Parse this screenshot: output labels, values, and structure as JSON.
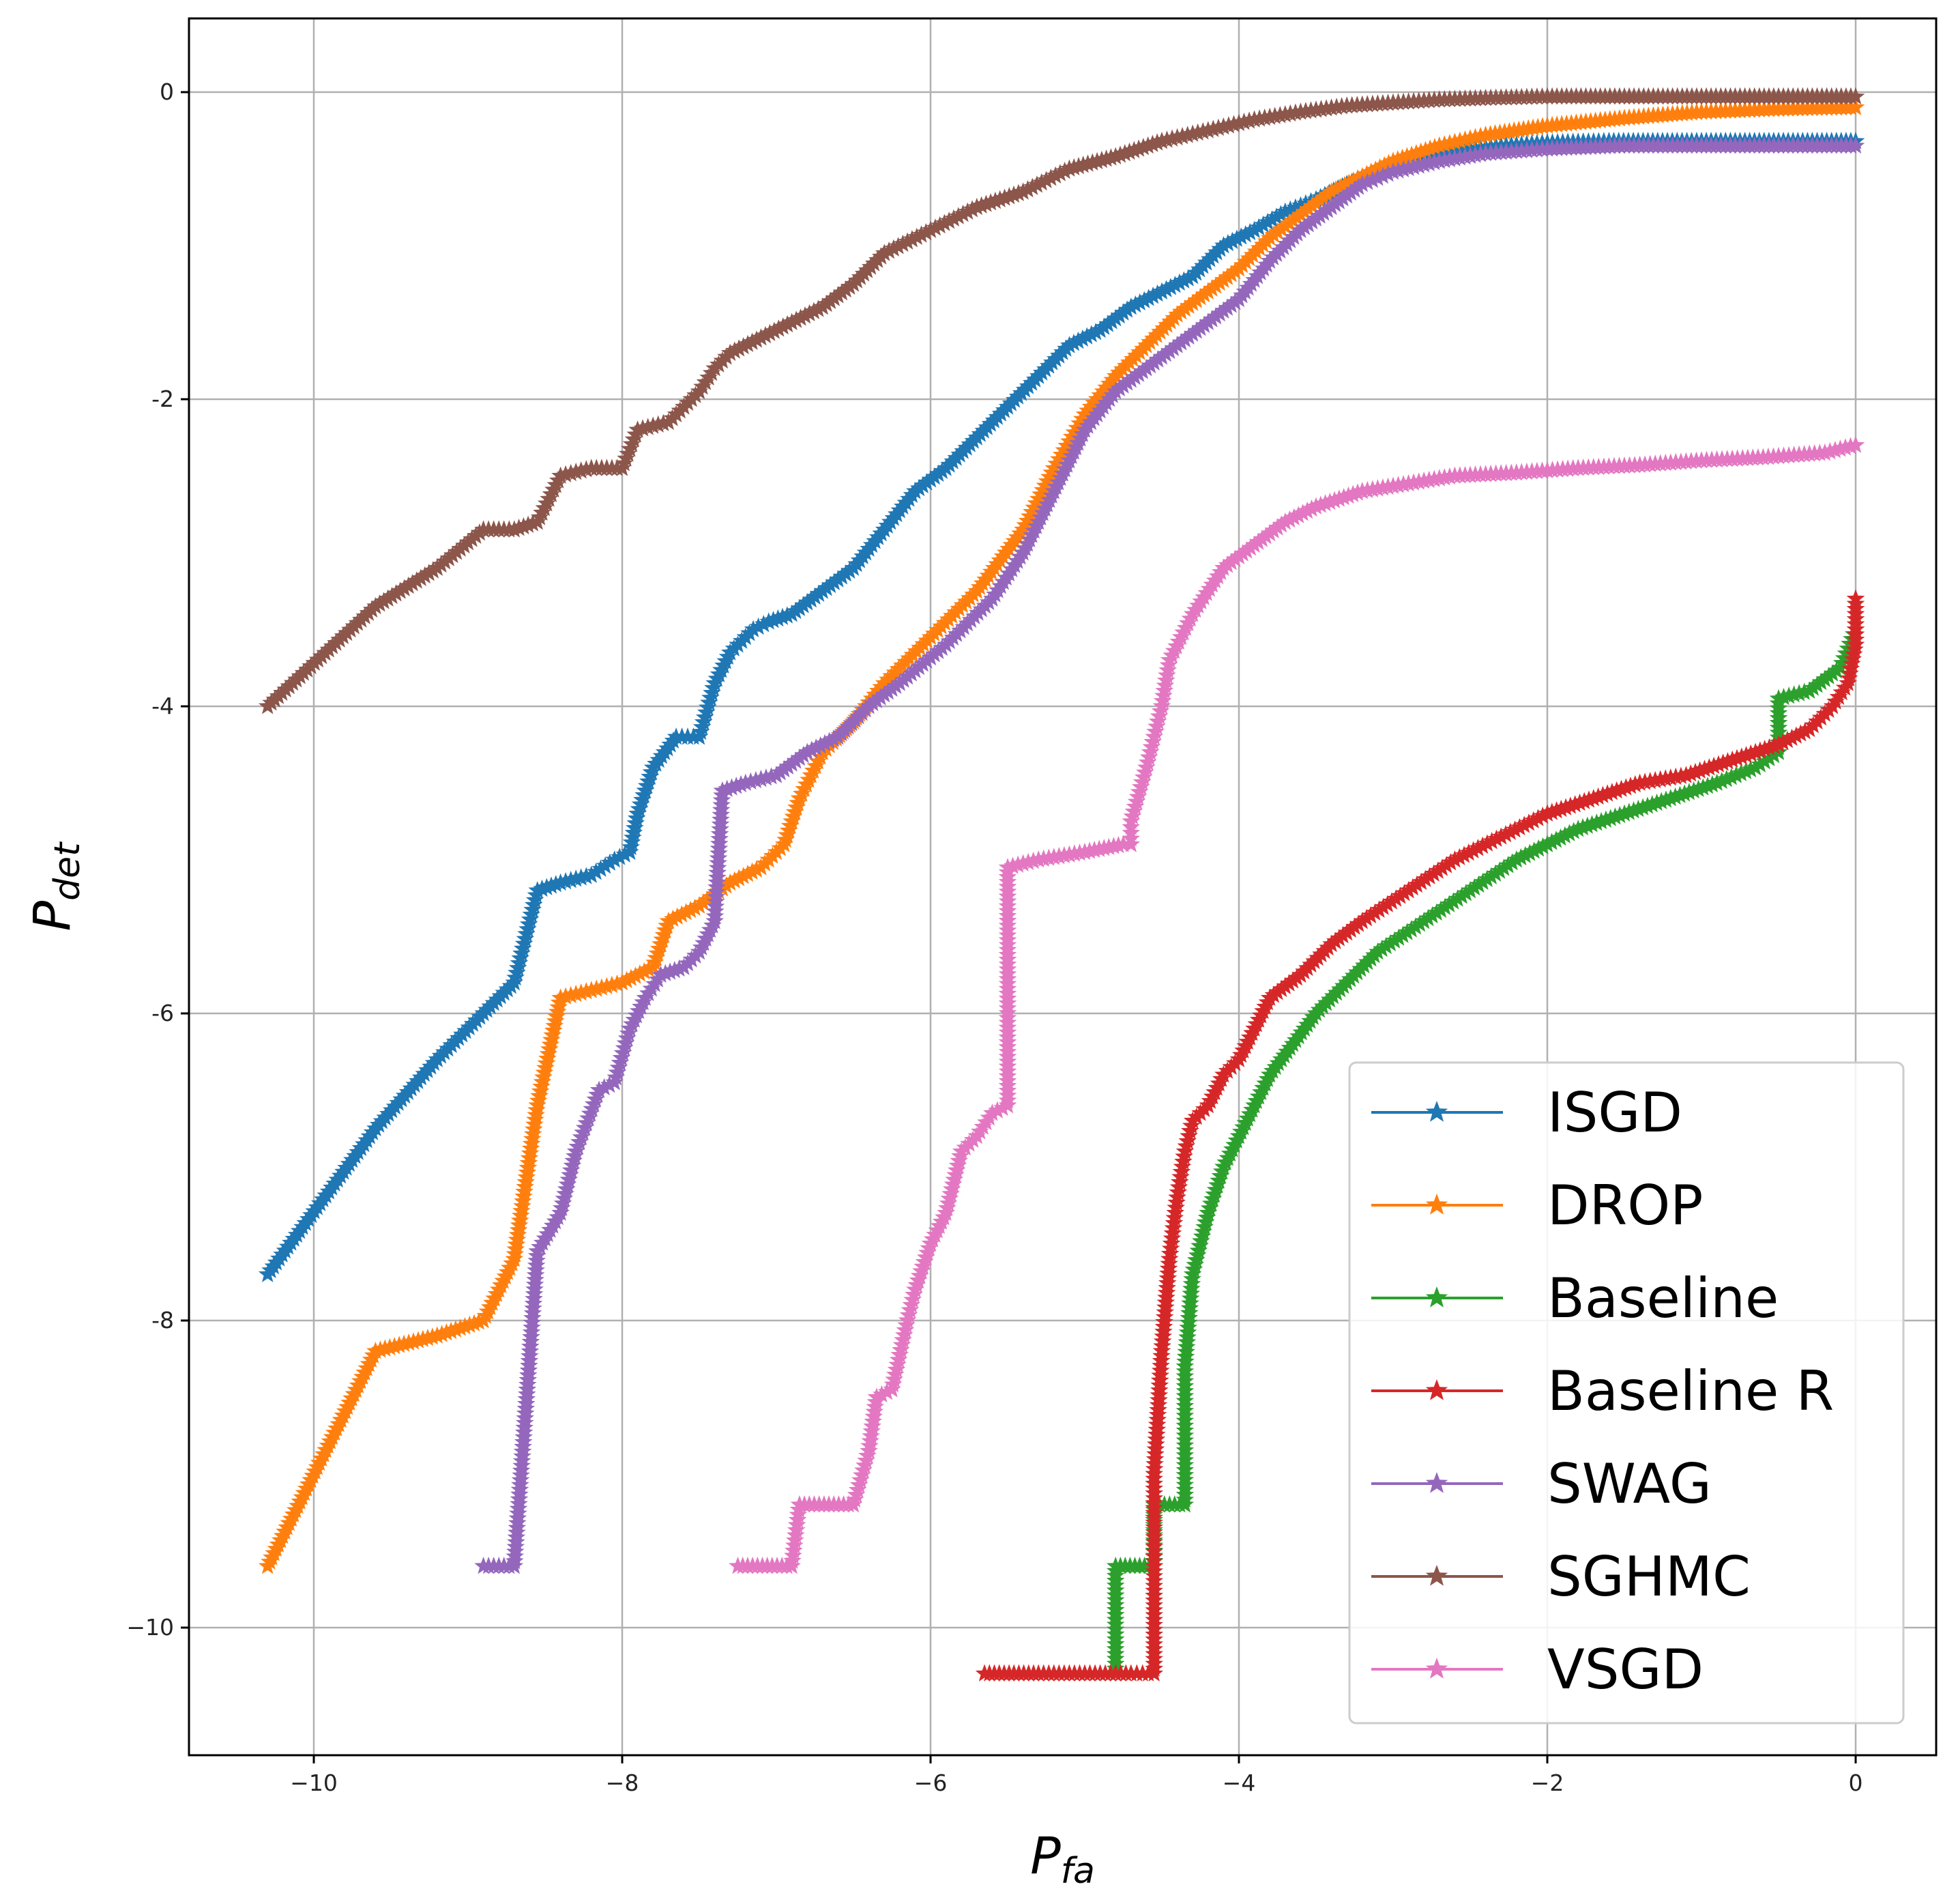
{
  "chart_data": {
    "type": "line",
    "xlabel": "P",
    "xlabel_sub": "fa",
    "ylabel": "P",
    "ylabel_sub": "det",
    "xlim": [
      -10.8,
      0.5
    ],
    "ylim": [
      -10.8,
      0.5
    ],
    "grid": true,
    "legend_position": "bottom-right",
    "x_ticks": [
      -10,
      -8,
      -6,
      -4,
      -2,
      0
    ],
    "x_tick_labels": [
      "−10",
      "−8",
      "−6",
      "−4",
      "−2",
      "0"
    ],
    "y_ticks": [
      0,
      -2,
      -4,
      -6,
      -8,
      -10
    ],
    "y_tick_labels": [
      "0",
      "-2",
      "-4",
      "-6",
      "-8",
      "−10"
    ],
    "series": [
      {
        "name": " ISGD",
        "color": "#1f77b4",
        "x": [
          -10.3,
          -9.6,
          -9.2,
          -8.9,
          -8.7,
          -8.55,
          -8.4,
          -8.2,
          -8.05,
          -7.95,
          -7.9,
          -7.8,
          -7.65,
          -7.5,
          -7.4,
          -7.3,
          -7.15,
          -7.05,
          -6.9,
          -6.7,
          -6.5,
          -6.3,
          -6.1,
          -5.9,
          -5.7,
          -5.5,
          -5.3,
          -5.1,
          -4.9,
          -4.7,
          -4.5,
          -4.3,
          -4.1,
          -3.9,
          -3.7,
          -3.5,
          -3.3,
          -3.1,
          -2.9,
          -2.7,
          -2.5,
          -2.3,
          -2.0,
          -1.6,
          -1.0,
          -0.5,
          0.0
        ],
        "y": [
          -7.7,
          -6.75,
          -6.3,
          -6.0,
          -5.8,
          -5.2,
          -5.15,
          -5.1,
          -5.0,
          -4.95,
          -4.7,
          -4.4,
          -4.2,
          -4.2,
          -3.85,
          -3.65,
          -3.5,
          -3.45,
          -3.4,
          -3.25,
          -3.1,
          -2.85,
          -2.6,
          -2.45,
          -2.25,
          -2.05,
          -1.85,
          -1.65,
          -1.55,
          -1.4,
          -1.3,
          -1.2,
          -1.0,
          -0.9,
          -0.78,
          -0.7,
          -0.6,
          -0.52,
          -0.45,
          -0.4,
          -0.37,
          -0.35,
          -0.33,
          -0.32,
          -0.32,
          -0.32,
          -0.32
        ]
      },
      {
        "name": "DROP",
        "color": "#ff7f0e",
        "x": [
          -10.3,
          -9.6,
          -9.2,
          -8.9,
          -8.7,
          -8.55,
          -8.4,
          -8.2,
          -8.0,
          -7.8,
          -7.7,
          -7.5,
          -7.3,
          -7.1,
          -6.95,
          -6.85,
          -6.7,
          -6.5,
          -6.3,
          -6.0,
          -5.7,
          -5.4,
          -5.2,
          -5.0,
          -4.8,
          -4.6,
          -4.4,
          -4.2,
          -4.0,
          -3.8,
          -3.6,
          -3.4,
          -3.2,
          -3.0,
          -2.7,
          -2.4,
          -2.0,
          -1.5,
          -1.0,
          -0.5,
          0.0
        ],
        "y": [
          -9.6,
          -8.2,
          -8.1,
          -8.0,
          -7.6,
          -6.6,
          -5.9,
          -5.85,
          -5.8,
          -5.7,
          -5.4,
          -5.3,
          -5.15,
          -5.05,
          -4.9,
          -4.6,
          -4.3,
          -4.1,
          -3.85,
          -3.55,
          -3.25,
          -2.85,
          -2.45,
          -2.1,
          -1.85,
          -1.65,
          -1.45,
          -1.3,
          -1.15,
          -0.95,
          -0.8,
          -0.65,
          -0.55,
          -0.45,
          -0.35,
          -0.28,
          -0.22,
          -0.17,
          -0.13,
          -0.11,
          -0.1
        ]
      },
      {
        "name": "Baseline",
        "color": "#2ca02c",
        "x": [
          -4.8,
          -4.8,
          -4.55,
          -4.55,
          -4.35,
          -4.35,
          -4.3,
          -4.2,
          -4.1,
          -4.0,
          -3.9,
          -3.8,
          -3.65,
          -3.5,
          -3.3,
          -3.1,
          -2.8,
          -2.5,
          -2.2,
          -2.0,
          -1.8,
          -1.5,
          -1.2,
          -0.9,
          -0.65,
          -0.5,
          -0.5,
          -0.3,
          -0.1,
          0.0
        ],
        "y": [
          -10.3,
          -9.6,
          -9.6,
          -9.2,
          -9.2,
          -8.3,
          -7.7,
          -7.3,
          -7.0,
          -6.8,
          -6.6,
          -6.4,
          -6.2,
          -6.0,
          -5.8,
          -5.6,
          -5.4,
          -5.2,
          -5.0,
          -4.9,
          -4.8,
          -4.7,
          -4.6,
          -4.5,
          -4.4,
          -4.3,
          -3.95,
          -3.9,
          -3.75,
          -3.5
        ]
      },
      {
        "name": "Baseline R",
        "color": "#d62728",
        "x": [
          -5.65,
          -5.3,
          -5.0,
          -4.7,
          -4.55,
          -4.55,
          -4.5,
          -4.45,
          -4.4,
          -4.35,
          -4.3,
          -4.2,
          -4.1,
          -4.0,
          -3.9,
          -3.8,
          -3.6,
          -3.4,
          -3.2,
          -2.9,
          -2.6,
          -2.3,
          -2.0,
          -1.7,
          -1.4,
          -1.1,
          -0.8,
          -0.5,
          -0.3,
          -0.15,
          -0.05,
          0.0,
          0.0
        ],
        "y": [
          -10.3,
          -10.3,
          -10.3,
          -10.3,
          -10.3,
          -9.0,
          -8.2,
          -7.6,
          -7.2,
          -6.9,
          -6.7,
          -6.6,
          -6.4,
          -6.3,
          -6.1,
          -5.9,
          -5.75,
          -5.55,
          -5.4,
          -5.2,
          -5.0,
          -4.85,
          -4.7,
          -4.6,
          -4.5,
          -4.45,
          -4.35,
          -4.25,
          -4.15,
          -4.0,
          -3.85,
          -3.6,
          -3.3
        ]
      },
      {
        "name": "SWAG",
        "color": "#9467bd",
        "x": [
          -8.9,
          -8.7,
          -8.55,
          -8.4,
          -8.3,
          -8.15,
          -8.05,
          -7.95,
          -7.85,
          -7.75,
          -7.6,
          -7.5,
          -7.4,
          -7.35,
          -7.2,
          -7.0,
          -6.8,
          -6.6,
          -6.4,
          -6.2,
          -5.9,
          -5.6,
          -5.4,
          -5.2,
          -5.0,
          -4.8,
          -4.6,
          -4.4,
          -4.2,
          -4.0,
          -3.8,
          -3.6,
          -3.4,
          -3.2,
          -3.0,
          -2.7,
          -2.4,
          -2.0,
          -1.5,
          -1.0,
          -0.5,
          0.0
        ],
        "y": [
          -9.6,
          -9.6,
          -7.55,
          -7.3,
          -6.9,
          -6.5,
          -6.45,
          -6.1,
          -5.9,
          -5.75,
          -5.7,
          -5.6,
          -5.4,
          -4.55,
          -4.5,
          -4.45,
          -4.3,
          -4.2,
          -4.0,
          -3.85,
          -3.6,
          -3.3,
          -3.0,
          -2.6,
          -2.2,
          -1.95,
          -1.8,
          -1.65,
          -1.5,
          -1.35,
          -1.1,
          -0.9,
          -0.75,
          -0.6,
          -0.52,
          -0.45,
          -0.4,
          -0.37,
          -0.35,
          -0.35,
          -0.35,
          -0.35
        ]
      },
      {
        "name": "SGHMC",
        "color": "#8c564b",
        "x": [
          -10.3,
          -9.6,
          -9.2,
          -8.9,
          -8.7,
          -8.55,
          -8.4,
          -8.2,
          -8.0,
          -7.9,
          -7.7,
          -7.6,
          -7.5,
          -7.4,
          -7.3,
          -7.1,
          -6.9,
          -6.7,
          -6.5,
          -6.3,
          -6.0,
          -5.7,
          -5.4,
          -5.1,
          -4.8,
          -4.5,
          -4.2,
          -3.9,
          -3.6,
          -3.3,
          -3.0,
          -2.7,
          -2.4,
          -2.0,
          -1.5,
          -1.0,
          -0.5,
          0.0
        ],
        "y": [
          -4.0,
          -3.35,
          -3.1,
          -2.85,
          -2.85,
          -2.8,
          -2.5,
          -2.45,
          -2.45,
          -2.2,
          -2.15,
          -2.05,
          -1.95,
          -1.8,
          -1.7,
          -1.6,
          -1.5,
          -1.4,
          -1.25,
          -1.05,
          -0.9,
          -0.75,
          -0.65,
          -0.5,
          -0.42,
          -0.32,
          -0.25,
          -0.18,
          -0.13,
          -0.09,
          -0.07,
          -0.05,
          -0.04,
          -0.03,
          -0.03,
          -0.03,
          -0.03,
          -0.03
        ]
      },
      {
        "name": "VSGD",
        "color": "#e377c2",
        "x": [
          -7.25,
          -6.9,
          -6.85,
          -6.5,
          -6.4,
          -6.35,
          -6.25,
          -6.15,
          -6.1,
          -6.0,
          -5.9,
          -5.8,
          -5.7,
          -5.6,
          -5.5,
          -5.5,
          -5.3,
          -5.0,
          -4.75,
          -4.7,
          -4.7,
          -4.6,
          -4.55,
          -4.5,
          -4.45,
          -4.3,
          -4.1,
          -3.9,
          -3.7,
          -3.5,
          -3.2,
          -2.9,
          -2.6,
          -2.2,
          -1.8,
          -1.4,
          -1.0,
          -0.6,
          -0.2,
          0.0
        ],
        "y": [
          -9.6,
          -9.6,
          -9.2,
          -9.2,
          -8.85,
          -8.5,
          -8.45,
          -8.0,
          -7.8,
          -7.5,
          -7.3,
          -6.9,
          -6.8,
          -6.65,
          -6.6,
          -5.05,
          -5.0,
          -4.95,
          -4.9,
          -4.9,
          -4.75,
          -4.4,
          -4.2,
          -4.0,
          -3.7,
          -3.4,
          -3.1,
          -2.95,
          -2.8,
          -2.7,
          -2.6,
          -2.55,
          -2.5,
          -2.48,
          -2.45,
          -2.43,
          -2.4,
          -2.38,
          -2.35,
          -2.3
        ]
      }
    ]
  }
}
